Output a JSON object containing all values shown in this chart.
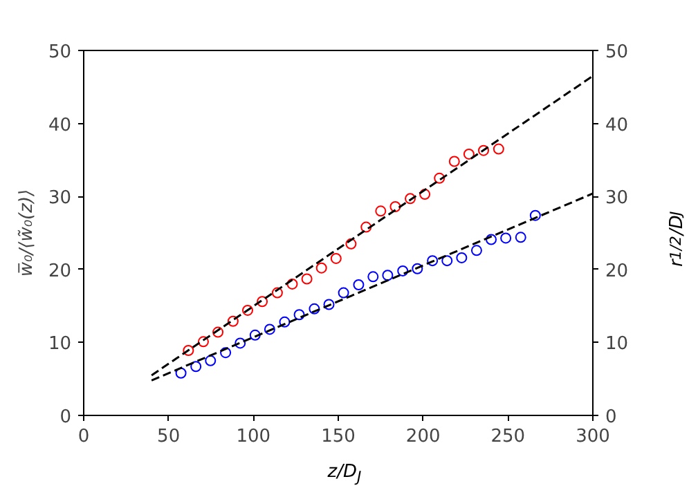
{
  "chart_data": {
    "type": "scatter",
    "xlabel": "z/D$_{J}$",
    "ylabel": "w̅₀/⟨w̃₀(z)⟩",
    "y2label": "r$_{1/2}$/D$_{J}$",
    "xlim": [
      0,
      300
    ],
    "xticks": [
      0,
      50,
      100,
      150,
      200,
      250,
      300
    ],
    "ylim": [
      0,
      50
    ],
    "yticks": [
      0,
      10,
      20,
      30,
      40,
      50
    ],
    "y2lim": [
      0,
      50
    ],
    "y2ticks": [
      0,
      10,
      20,
      30,
      40,
      50
    ],
    "marker": "circle",
    "series": [
      {
        "type": "scatter",
        "color": "#ff0000",
        "x": [
          61.7,
          70.5,
          79.1,
          88.0,
          96.6,
          105.2,
          114.1,
          122.9,
          131.5,
          140.1,
          148.7,
          157.5,
          166.4,
          175.0,
          183.6,
          192.4,
          201.0,
          209.6,
          218.4,
          227.0,
          235.6,
          244.5
        ],
        "values": [
          8.9,
          10.1,
          11.4,
          12.9,
          14.4,
          15.6,
          16.8,
          18.0,
          18.7,
          20.2,
          21.5,
          23.5,
          25.8,
          28.0,
          28.6,
          29.7,
          30.3,
          32.5,
          34.8,
          35.8,
          36.3,
          36.5
        ]
      },
      {
        "type": "scatter",
        "color": "#0000ff",
        "x": [
          57.3,
          66.1,
          74.7,
          83.6,
          92.2,
          101.0,
          109.6,
          118.4,
          127.0,
          135.9,
          144.5,
          153.1,
          162.0,
          170.5,
          179.1,
          188.0,
          196.6,
          205.5,
          214.1,
          222.7,
          231.5,
          240.1,
          248.7,
          257.5,
          266.1
        ],
        "values": [
          5.8,
          6.7,
          7.5,
          8.6,
          9.9,
          11.0,
          11.8,
          12.8,
          13.8,
          14.6,
          15.2,
          16.8,
          17.9,
          19.0,
          19.2,
          19.8,
          20.1,
          21.2,
          21.2,
          21.6,
          22.6,
          24.1,
          24.3,
          24.4,
          27.4
        ]
      },
      {
        "type": "line",
        "color": "#000000",
        "line_style": "dashed",
        "marker": "none",
        "x": [
          40,
          300
        ],
        "values": [
          5.5,
          46.5
        ]
      },
      {
        "type": "line",
        "color": "#000000",
        "line_style": "dashed",
        "marker": "none",
        "x": [
          40,
          300
        ],
        "values": [
          4.8,
          30.4
        ]
      }
    ]
  }
}
